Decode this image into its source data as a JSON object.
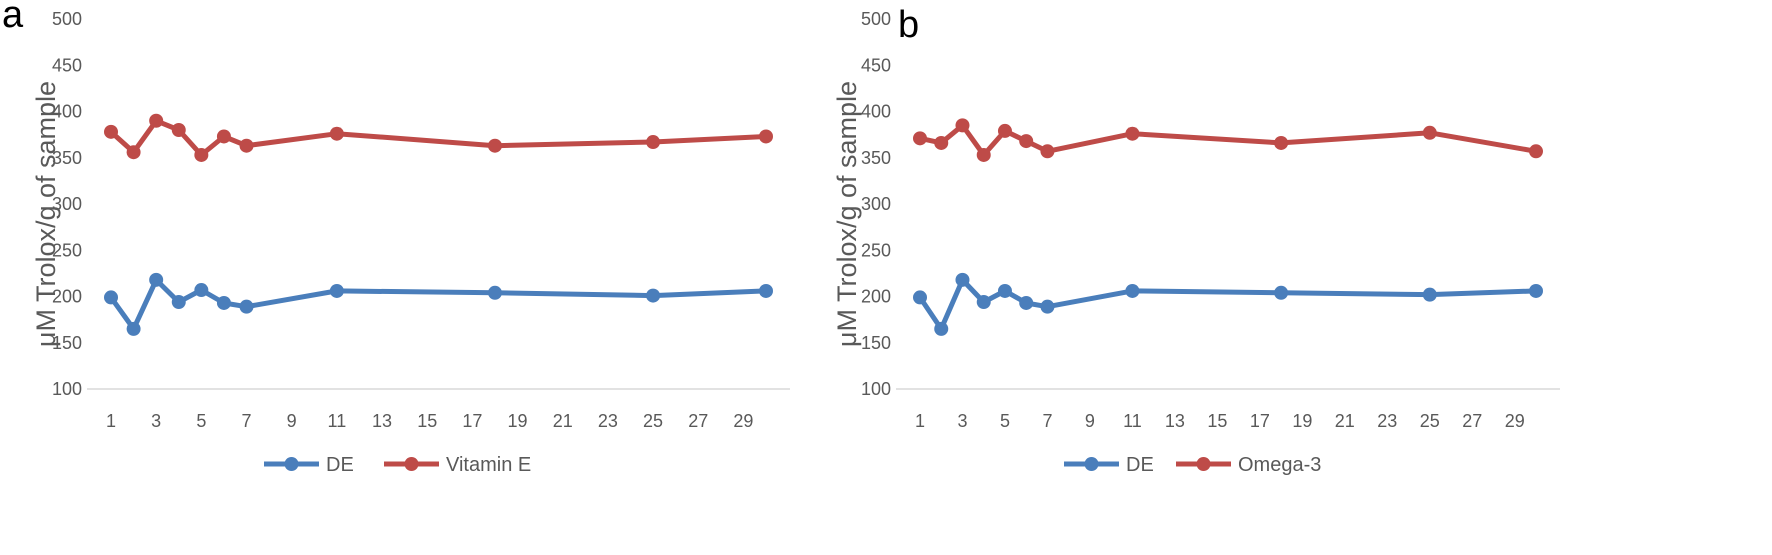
{
  "chart_data": [
    {
      "panel_label": "a",
      "type": "line",
      "xlabel": "",
      "ylabel": "μM Trolox/g of sample",
      "ylim": [
        100,
        500
      ],
      "yticks": [
        100,
        150,
        200,
        250,
        300,
        350,
        400,
        450,
        500
      ],
      "xlim": [
        1,
        30
      ],
      "xticks": [
        1,
        3,
        5,
        7,
        9,
        11,
        13,
        15,
        17,
        19,
        21,
        23,
        25,
        27,
        29
      ],
      "grid": false,
      "legend_position": "bottom",
      "x": [
        1,
        2,
        3,
        4,
        5,
        6,
        7,
        11,
        18,
        25,
        30
      ],
      "series": [
        {
          "name": "DE",
          "color": "#4a7ebb",
          "values": [
            199,
            165,
            218,
            194,
            207,
            193,
            189,
            206,
            204,
            201,
            206
          ]
        },
        {
          "name": "Vitamin E",
          "color": "#be4b48",
          "values": [
            378,
            356,
            390,
            380,
            353,
            373,
            363,
            376,
            363,
            367,
            373
          ]
        }
      ]
    },
    {
      "panel_label": "b",
      "type": "line",
      "xlabel": "",
      "ylabel": "μM Trolox/g of sample",
      "ylim": [
        100,
        500
      ],
      "yticks": [
        100,
        150,
        200,
        250,
        300,
        350,
        400,
        450,
        500
      ],
      "xlim": [
        1,
        30
      ],
      "xticks": [
        1,
        3,
        5,
        7,
        9,
        11,
        13,
        15,
        17,
        19,
        21,
        23,
        25,
        27,
        29
      ],
      "grid": false,
      "legend_position": "bottom",
      "x": [
        1,
        2,
        3,
        4,
        5,
        6,
        7,
        11,
        18,
        25,
        30
      ],
      "series": [
        {
          "name": "DE",
          "color": "#4a7ebb",
          "values": [
            199,
            165,
            218,
            194,
            206,
            193,
            189,
            206,
            204,
            202,
            206
          ]
        },
        {
          "name": "Omega-3",
          "color": "#be4b48",
          "values": [
            371,
            366,
            385,
            353,
            379,
            368,
            357,
            376,
            366,
            377,
            357
          ]
        }
      ]
    }
  ]
}
